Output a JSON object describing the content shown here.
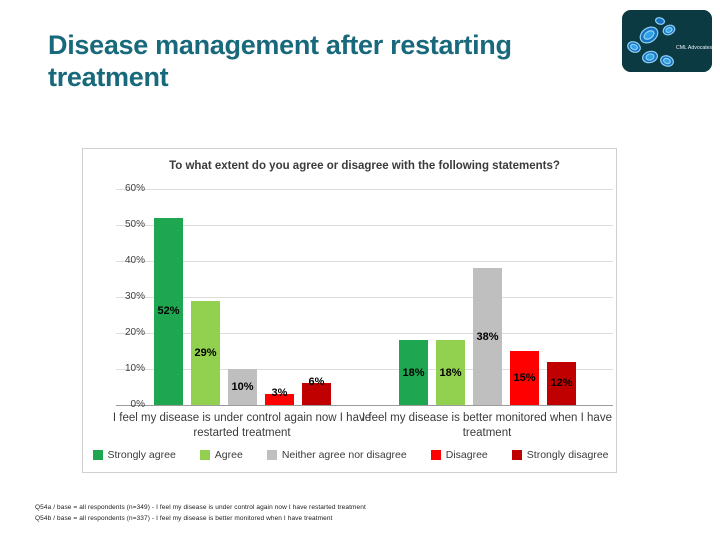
{
  "slide": {
    "title": "Disease management after restarting treatment",
    "footnotes": [
      "Q54a / base = all respondents (n=349) -  I feel my disease is under control again now I have restarted treatment",
      "Q54b / base = all respondents (n=337)  - I feel my disease is better monitored when I have treatment"
    ]
  },
  "logo": {
    "text": "CML Advocates Network"
  },
  "chart_data": {
    "type": "bar",
    "title": "To what extent do you agree or disagree with the following statements?",
    "categories": [
      "I feel my disease is under control again now I have restarted treatment",
      "I feel my disease is better monitored when I have treatment"
    ],
    "series": [
      {
        "name": "Strongly agree",
        "color": "#1EA750",
        "values": [
          52,
          18
        ]
      },
      {
        "name": "Agree",
        "color": "#92D050",
        "values": [
          29,
          18
        ]
      },
      {
        "name": "Neither agree nor disagree",
        "color": "#BFBFBF",
        "values": [
          10,
          38
        ]
      },
      {
        "name": "Disagree",
        "color": "#FE0000",
        "values": [
          3,
          15
        ]
      },
      {
        "name": "Strongly disagree",
        "color": "#C00000",
        "values": [
          6,
          12
        ]
      }
    ],
    "ylim": [
      0,
      60
    ],
    "ytick_step": 10,
    "ytick_labels": [
      "0%",
      "10%",
      "20%",
      "30%",
      "40%",
      "50%",
      "60%"
    ],
    "data_labels": [
      [
        "52%",
        "29%",
        "10%",
        "3%",
        "6%"
      ],
      [
        "18%",
        "18%",
        "38%",
        "15%",
        "12%"
      ]
    ],
    "grid": true,
    "legend_position": "bottom"
  },
  "colors": {
    "title_teal": "#17697B",
    "logo_bg": "#0C3A42",
    "chart_border": "#CFCFCF"
  }
}
